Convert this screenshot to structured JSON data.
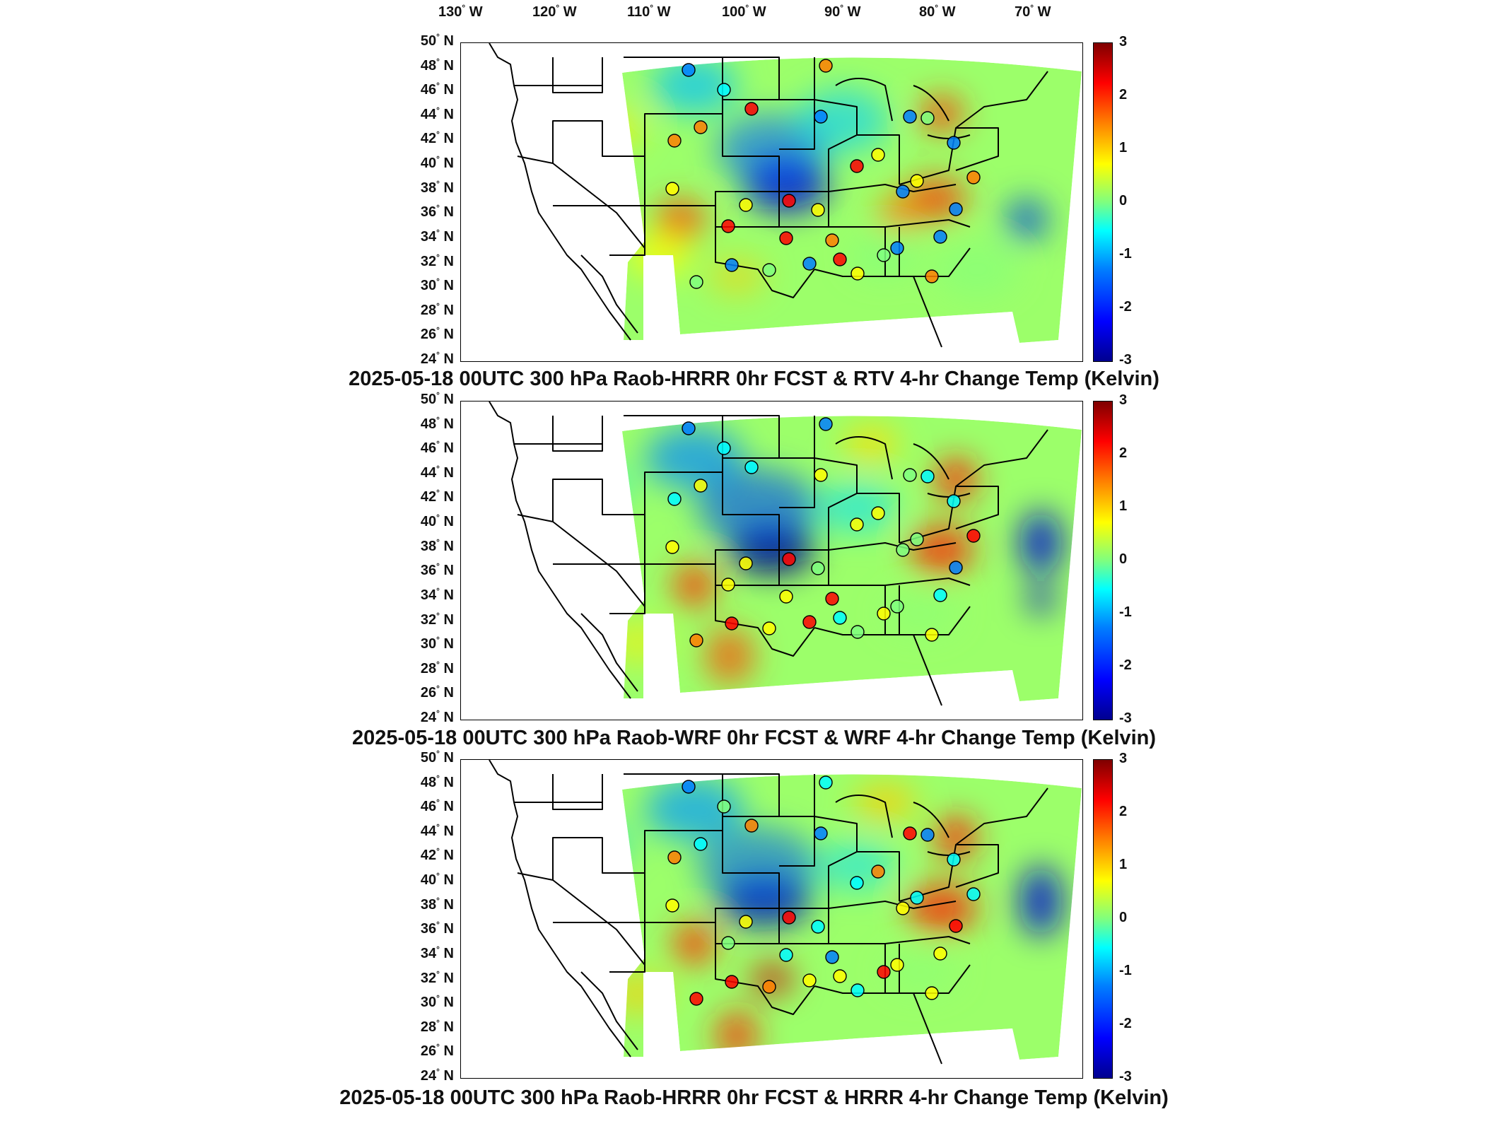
{
  "longitude_labels": [
    "130",
    "120",
    "110",
    "100",
    "90",
    "80",
    "70"
  ],
  "lon_suffix": "W",
  "latitude_labels": [
    "50",
    "48",
    "46",
    "44",
    "42",
    "40",
    "38",
    "36",
    "34",
    "32",
    "30",
    "28",
    "26",
    "24"
  ],
  "lat_suffix": "N",
  "colorbar_ticks": [
    "3",
    "2",
    "1",
    "0",
    "-1",
    "-2",
    "-3"
  ],
  "colormap": {
    "min": -3,
    "max": 3,
    "colors": [
      "#00008f",
      "#0000ff",
      "#007fff",
      "#00ffff",
      "#7fff7f",
      "#ffff00",
      "#ff7f00",
      "#ff0000",
      "#7f0000"
    ]
  },
  "panels": [
    {
      "title": "2025-05-18 00UTC 300 hPa Raob-HRRR 0hr FCST & RTV 4-hr Change Temp (Kelvin)"
    },
    {
      "title": "2025-05-18 00UTC 300 hPa Raob-WRF 0hr FCST & WRF 4-hr Change Temp (Kelvin)"
    },
    {
      "title": "2025-05-18 00UTC 300 hPa Raob-HRRR 0hr FCST & HRRR 4-hr Change Temp (Kelvin)"
    }
  ]
}
